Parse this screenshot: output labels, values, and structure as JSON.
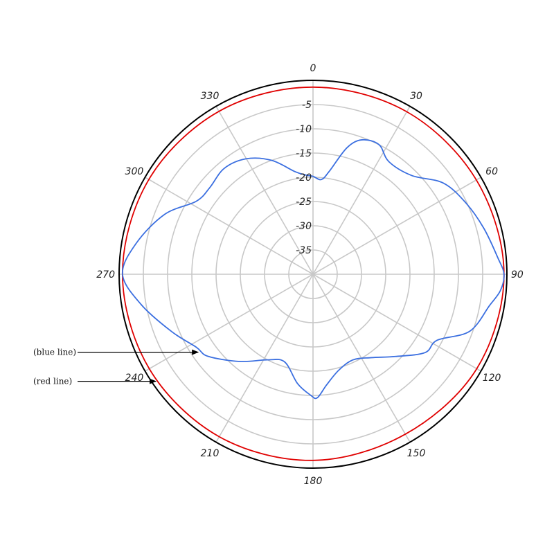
{
  "chart_data": {
    "type": "polar-line",
    "angle_ticks": [
      0,
      30,
      60,
      90,
      120,
      150,
      180,
      210,
      240,
      270,
      300,
      330
    ],
    "angle_labels": [
      "0",
      "30",
      "60",
      "90",
      "120",
      "150",
      "180",
      "210",
      "240",
      "270",
      "300",
      "330"
    ],
    "angle_direction": "clockwise",
    "angle_zero": "top",
    "radial_range": [
      -40,
      0
    ],
    "radial_rings": [
      -40,
      -35,
      -30,
      -25,
      -20,
      -15,
      -10,
      -5,
      0
    ],
    "radial_labels": [
      "-5",
      "-10",
      "-15",
      "-20",
      "-25",
      "-30",
      "-35"
    ],
    "radial_label_values": [
      -5,
      -10,
      -15,
      -20,
      -25,
      -30,
      -35
    ],
    "grid": true,
    "outer_circle_color": "#000000",
    "grid_color": "#c8c8c8",
    "series": [
      {
        "color": "#e00000",
        "points": [
          [
            0,
            -1.4
          ],
          [
            30,
            -1.3
          ],
          [
            60,
            -1.1
          ],
          [
            90,
            -0.6
          ],
          [
            120,
            -1.0
          ],
          [
            150,
            -1.9
          ],
          [
            180,
            -1.6
          ],
          [
            210,
            -1.3
          ],
          [
            240,
            -1.0
          ],
          [
            270,
            -0.7
          ],
          [
            300,
            -0.9
          ],
          [
            330,
            -1.2
          ],
          [
            360,
            -1.4
          ]
        ]
      },
      {
        "color": "#3b6fe0",
        "points": [
          [
            0,
            -19.8
          ],
          [
            5,
            -20.4
          ],
          [
            9,
            -18.5
          ],
          [
            15,
            -13.0
          ],
          [
            20,
            -10.5
          ],
          [
            27,
            -10.0
          ],
          [
            34,
            -12.0
          ],
          [
            45,
            -11.2
          ],
          [
            55,
            -7.2
          ],
          [
            65,
            -5.2
          ],
          [
            75,
            -3.5
          ],
          [
            85,
            -1.7
          ],
          [
            90,
            -0.6
          ],
          [
            95,
            -1.2
          ],
          [
            100,
            -3.0
          ],
          [
            110,
            -5.6
          ],
          [
            118,
            -11.0
          ],
          [
            125,
            -11.8
          ],
          [
            135,
            -16.0
          ],
          [
            145,
            -19.0
          ],
          [
            155,
            -20.5
          ],
          [
            165,
            -19.5
          ],
          [
            173,
            -17.0
          ],
          [
            178,
            -14.5
          ],
          [
            181,
            -15.0
          ],
          [
            188,
            -17.2
          ],
          [
            198,
            -21.0
          ],
          [
            208,
            -20.0
          ],
          [
            220,
            -16.5
          ],
          [
            232,
            -12.5
          ],
          [
            238,
            -11.6
          ],
          [
            248,
            -8.5
          ],
          [
            260,
            -4.0
          ],
          [
            270,
            -0.7
          ],
          [
            280,
            -3.0
          ],
          [
            292,
            -7.0
          ],
          [
            302,
            -11.6
          ],
          [
            310,
            -12.2
          ],
          [
            320,
            -11.5
          ],
          [
            330,
            -12.5
          ],
          [
            340,
            -15.0
          ],
          [
            350,
            -18.5
          ],
          [
            356,
            -19.5
          ],
          [
            360,
            -19.8
          ]
        ]
      }
    ],
    "annotations": [
      {
        "text": "(blue line)",
        "series": 1,
        "angle": 235.5
      },
      {
        "text": "(red line)",
        "series": 0,
        "angle": 235.5
      }
    ]
  }
}
